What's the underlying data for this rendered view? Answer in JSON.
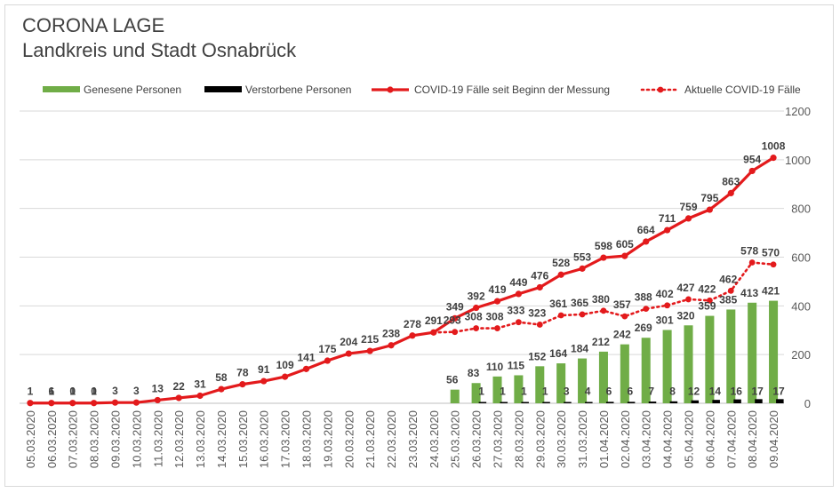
{
  "chart_data": {
    "type": "bar+line",
    "title": "CORONA LAGE",
    "subtitle": "Landkreis und Stadt Osnabrück",
    "categories": [
      "05.03.2020",
      "06.03.2020",
      "07.03.2020",
      "08.03.2020",
      "09.03.2020",
      "10.03.2020",
      "11.03.2020",
      "12.03.2020",
      "13.03.2020",
      "14.03.2020",
      "15.03.2020",
      "16.03.2020",
      "17.03.2020",
      "18.03.2020",
      "19.03.2020",
      "20.03.2020",
      "21.03.2020",
      "22.03.2020",
      "23.03.2020",
      "24.03.2020",
      "25.03.2020",
      "26.03.2020",
      "27.03.2020",
      "28.03.2020",
      "29.03.2020",
      "30.03.2020",
      "31.03.2020",
      "01.04.2020",
      "02.04.2020",
      "03.04.2020",
      "04.04.2020",
      "05.04.2020",
      "06.04.2020",
      "07.04.2020",
      "08.04.2020",
      "09.04.2020"
    ],
    "series": [
      {
        "name": "Genesene Personen",
        "kind": "bar",
        "color": "#70ad47",
        "values": [
          0,
          0,
          0,
          0,
          0,
          0,
          0,
          0,
          0,
          0,
          0,
          0,
          0,
          0,
          0,
          0,
          0,
          0,
          0,
          0,
          56,
          83,
          110,
          115,
          152,
          164,
          184,
          212,
          242,
          269,
          301,
          320,
          359,
          385,
          413,
          421
        ],
        "labels": [
          null,
          null,
          null,
          null,
          null,
          null,
          null,
          null,
          null,
          null,
          null,
          null,
          null,
          null,
          null,
          null,
          null,
          null,
          null,
          null,
          "56",
          "83",
          "110",
          "115",
          "152",
          "164",
          "184",
          "212",
          "242",
          "269",
          "301",
          "320",
          "359",
          "385",
          "413",
          "421"
        ]
      },
      {
        "name": "Verstorbene Personen",
        "kind": "bar",
        "color": "#000000",
        "values": [
          0,
          0,
          0,
          0,
          0,
          0,
          0,
          0,
          0,
          0,
          0,
          0,
          0,
          0,
          0,
          0,
          0,
          0,
          0,
          0,
          0,
          1,
          1,
          1,
          1,
          3,
          4,
          6,
          6,
          7,
          8,
          12,
          14,
          16,
          17,
          17
        ],
        "labels": [
          null,
          null,
          null,
          null,
          null,
          null,
          null,
          null,
          null,
          null,
          null,
          null,
          null,
          null,
          null,
          null,
          null,
          null,
          null,
          null,
          null,
          "1",
          "1",
          "1",
          "1",
          "3",
          "4",
          "6",
          "6",
          "7",
          "8",
          "12",
          "14",
          "16",
          "17",
          "17"
        ]
      },
      {
        "name": "COVID-19 Fälle seit Beginn der Messung",
        "kind": "line",
        "color": "#e31a1c",
        "values": [
          1,
          1,
          1,
          1,
          3,
          3,
          13,
          22,
          31,
          58,
          78,
          91,
          109,
          141,
          175,
          204,
          215,
          238,
          278,
          291,
          349,
          392,
          419,
          449,
          476,
          528,
          553,
          598,
          605,
          664,
          711,
          759,
          795,
          863,
          954,
          1008
        ]
      },
      {
        "name": "Aktuelle COVID-19 Fälle",
        "kind": "dotted-line",
        "color": "#e31a1c",
        "values": [
          1,
          6,
          0,
          0,
          3,
          3,
          13,
          22,
          31,
          58,
          78,
          91,
          109,
          141,
          175,
          204,
          215,
          238,
          278,
          291,
          293,
          308,
          308,
          333,
          323,
          361,
          365,
          380,
          357,
          388,
          402,
          427,
          422,
          462,
          578,
          570
        ],
        "labels": [
          null,
          "6",
          "0",
          "0",
          null,
          null,
          null,
          null,
          null,
          null,
          null,
          null,
          null,
          null,
          null,
          null,
          null,
          null,
          null,
          null,
          "293",
          "308",
          "308",
          "333",
          "323",
          "361",
          "365",
          "380",
          "357",
          "388",
          "402",
          "427",
          "422",
          "462",
          "578",
          "570"
        ]
      }
    ],
    "ylim": [
      0,
      1200
    ],
    "yticks": [
      "0",
      "200",
      "400",
      "600",
      "800",
      "1000",
      "1200"
    ],
    "y_axis_position": "right",
    "grid": true,
    "legend_position": "top"
  }
}
